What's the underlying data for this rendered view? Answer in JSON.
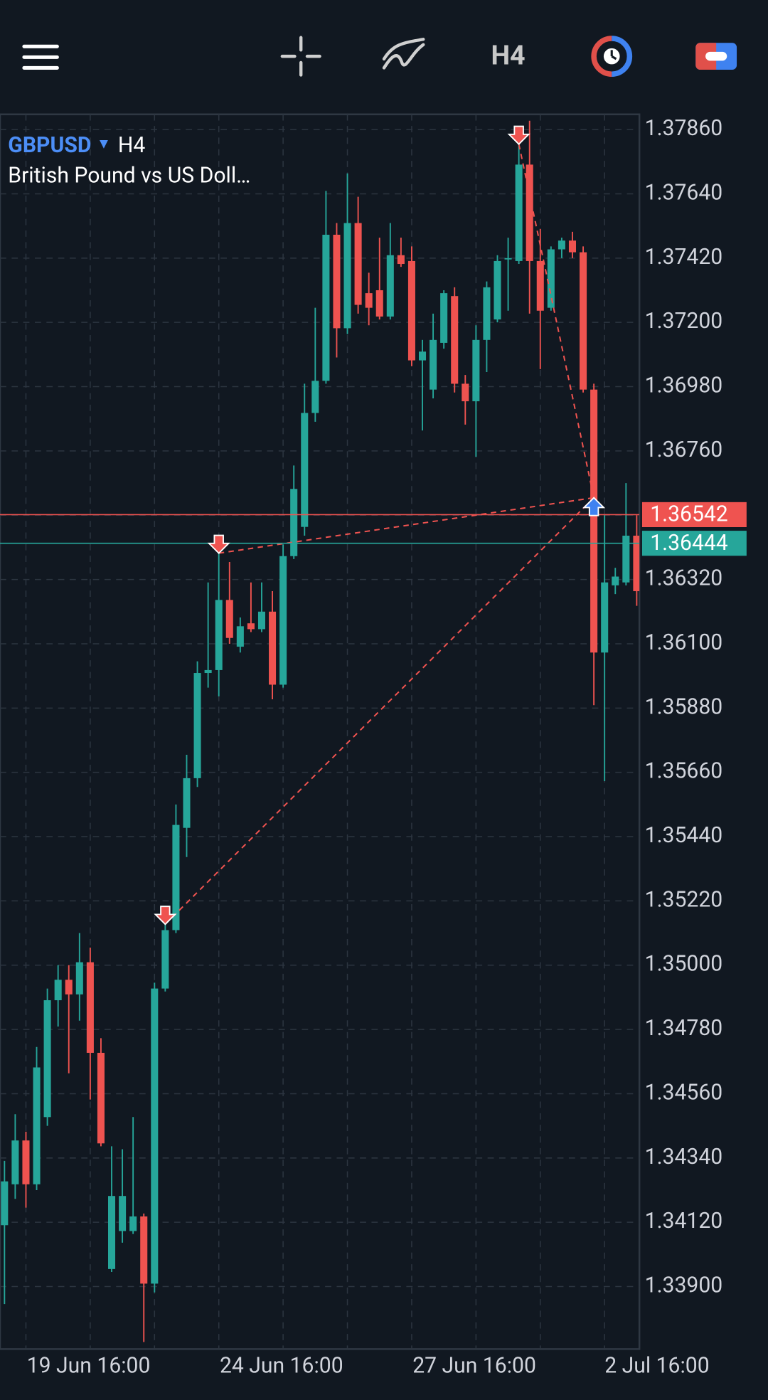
{
  "header": {
    "timeframe": "H4"
  },
  "chart_data": {
    "type": "candlestick",
    "symbol": "GBPUSD",
    "timeframe": "H4",
    "description": "British Pound vs US Doll…",
    "up_color": "#26a69a",
    "down_color": "#ef5350",
    "candles": {
      "open": [
        1.3411,
        1.3425,
        1.344,
        1.3425,
        1.3448,
        1.3488,
        1.3495,
        1.349,
        1.3501,
        1.347,
        1.3396,
        1.3409,
        1.3409,
        1.3414,
        1.3391,
        1.3492,
        1.3512,
        1.3547,
        1.3564,
        1.36,
        1.3601,
        1.3625,
        1.3609,
        1.3617,
        1.3615,
        1.3621,
        1.3596,
        1.364,
        1.365,
        1.3689,
        1.37,
        1.375,
        1.3718,
        1.3754,
        1.373,
        1.3731,
        1.3722,
        1.3743,
        1.3741,
        1.3707,
        1.3697,
        1.3713,
        1.3729,
        1.3699,
        1.3693,
        1.3714,
        1.3721,
        1.3742,
        1.3741,
        1.3774,
        1.3741,
        1.3725,
        1.3745,
        1.3748,
        1.3744,
        1.3697,
        1.3607,
        1.363,
        1.3631,
        1.3647
      ],
      "high": [
        1.3433,
        1.3449,
        1.3443,
        1.3472,
        1.3492,
        1.35,
        1.35,
        1.3511,
        1.3506,
        1.3475,
        1.3438,
        1.3437,
        1.3448,
        1.3415,
        1.3494,
        1.352,
        1.3555,
        1.3572,
        1.3604,
        1.3631,
        1.3641,
        1.3638,
        1.3619,
        1.3631,
        1.3631,
        1.3628,
        1.3644,
        1.3671,
        1.3699,
        1.3725,
        1.3765,
        1.3754,
        1.3771,
        1.3763,
        1.3737,
        1.3749,
        1.3754,
        1.3749,
        1.3746,
        1.3714,
        1.3723,
        1.3731,
        1.3732,
        1.3702,
        1.3719,
        1.3734,
        1.3743,
        1.3749,
        1.3781,
        1.3789,
        1.3752,
        1.3746,
        1.3749,
        1.3751,
        1.3746,
        1.3699,
        1.3654,
        1.3636,
        1.3665,
        1.3654
      ],
      "low": [
        1.3384,
        1.342,
        1.3417,
        1.3423,
        1.3445,
        1.3479,
        1.3463,
        1.3481,
        1.3454,
        1.3438,
        1.3395,
        1.3405,
        1.3408,
        1.3371,
        1.3388,
        1.3491,
        1.3511,
        1.3537,
        1.3561,
        1.3595,
        1.3592,
        1.361,
        1.3607,
        1.3614,
        1.3614,
        1.3591,
        1.3595,
        1.3639,
        1.3647,
        1.3686,
        1.3699,
        1.3708,
        1.3716,
        1.3723,
        1.3719,
        1.3721,
        1.3721,
        1.3739,
        1.3705,
        1.3683,
        1.3694,
        1.3711,
        1.3696,
        1.3685,
        1.3674,
        1.3703,
        1.372,
        1.3724,
        1.374,
        1.3723,
        1.3704,
        1.3724,
        1.3742,
        1.3742,
        1.3696,
        1.3589,
        1.3563,
        1.3627,
        1.363,
        1.3623
      ],
      "close": [
        1.3426,
        1.344,
        1.3425,
        1.3465,
        1.3488,
        1.3495,
        1.349,
        1.3501,
        1.347,
        1.3439,
        1.3421,
        1.3421,
        1.3414,
        1.3391,
        1.3492,
        1.3512,
        1.3548,
        1.3564,
        1.36,
        1.3601,
        1.3625,
        1.3612,
        1.3616,
        1.3615,
        1.3621,
        1.3596,
        1.364,
        1.3663,
        1.3689,
        1.37,
        1.375,
        1.3718,
        1.3754,
        1.3726,
        1.3725,
        1.3722,
        1.3743,
        1.374,
        1.3707,
        1.371,
        1.3714,
        1.373,
        1.3699,
        1.3693,
        1.3714,
        1.3732,
        1.3741,
        1.3742,
        1.3774,
        1.3741,
        1.3724,
        1.3745,
        1.3748,
        1.3744,
        1.3697,
        1.3607,
        1.3631,
        1.3633,
        1.3647,
        1.3628
      ]
    },
    "ylim": [
      1.33686,
      1.37912
    ],
    "yticks": [
      {
        "value": 1.3786,
        "label": "1.37860"
      },
      {
        "value": 1.3764,
        "label": "1.37640"
      },
      {
        "value": 1.3742,
        "label": "1.37420"
      },
      {
        "value": 1.372,
        "label": "1.37200"
      },
      {
        "value": 1.3698,
        "label": "1.36980"
      },
      {
        "value": 1.3676,
        "label": "1.36760"
      },
      {
        "value": 1.3654,
        "label": "1.36540"
      },
      {
        "value": 1.3632,
        "label": "1.36320"
      },
      {
        "value": 1.361,
        "label": "1.36100"
      },
      {
        "value": 1.3588,
        "label": "1.35880"
      },
      {
        "value": 1.3566,
        "label": "1.35660"
      },
      {
        "value": 1.3544,
        "label": "1.35440"
      },
      {
        "value": 1.3522,
        "label": "1.35220"
      },
      {
        "value": 1.35,
        "label": "1.35000"
      },
      {
        "value": 1.3478,
        "label": "1.34780"
      },
      {
        "value": 1.3456,
        "label": "1.34560"
      },
      {
        "value": 1.3434,
        "label": "1.34340"
      },
      {
        "value": 1.3412,
        "label": "1.34120"
      },
      {
        "value": 1.339,
        "label": "1.33900"
      }
    ],
    "xlim": [
      -0.42,
      59.25
    ],
    "xticks": [
      {
        "value": 2,
        "label": null
      },
      {
        "value": 8,
        "label": "19 Jun 16:00"
      },
      {
        "value": 14,
        "label": null
      },
      {
        "value": 20,
        "label": null
      },
      {
        "value": 26,
        "label": "24 Jun 16:00"
      },
      {
        "value": 32,
        "label": null
      },
      {
        "value": 38,
        "label": null
      },
      {
        "value": 44,
        "label": "27 Jun 16:00"
      },
      {
        "value": 50,
        "label": null
      },
      {
        "value": 56,
        "label": "2 Jul 16:00"
      }
    ],
    "grid": true,
    "ask": 1.36542,
    "ask_color": "#ef5350",
    "bid": 1.36444,
    "bid_color": "#26a69a",
    "trades": [
      {
        "direction": "down",
        "index": 15,
        "price": 1.3514
      },
      {
        "direction": "down",
        "index": 20,
        "price": 1.3641
      },
      {
        "direction": "down",
        "index": 48,
        "price": 1.3781
      },
      {
        "direction": "up",
        "index": 55,
        "price": 1.366
      }
    ]
  }
}
